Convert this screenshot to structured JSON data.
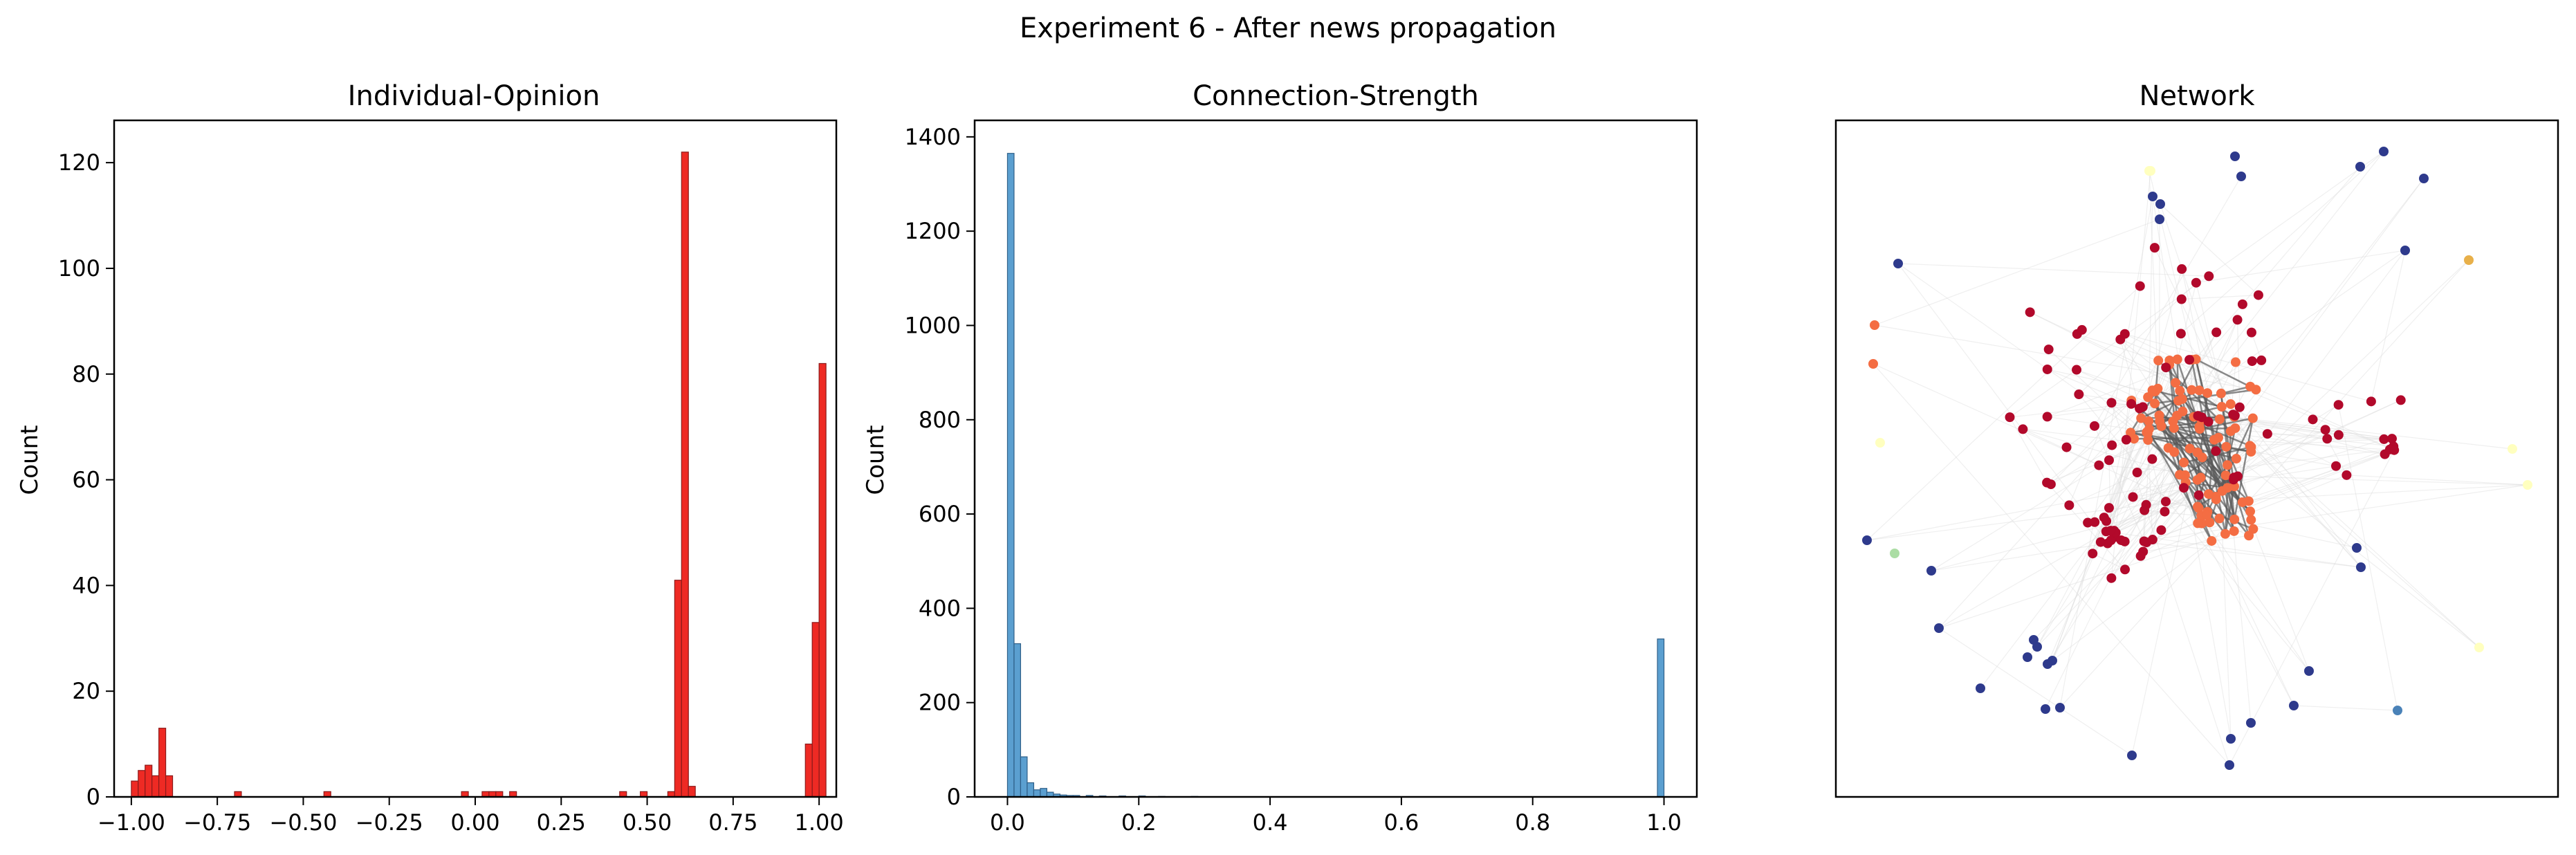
{
  "figure": {
    "title": "Experiment 6 - After news propagation"
  },
  "chart_data": [
    {
      "type": "bar",
      "title": "Individual-Opinion",
      "xlabel": "",
      "ylabel": "Count",
      "xlim": [
        -1.05,
        1.05
      ],
      "ylim": [
        0,
        128
      ],
      "xticks": [
        "−1.00",
        "−0.75",
        "−0.50",
        "−0.25",
        "0.00",
        "0.25",
        "0.50",
        "0.75",
        "1.00"
      ],
      "xtick_values": [
        -1.0,
        -0.75,
        -0.5,
        -0.25,
        0.0,
        0.25,
        0.5,
        0.75,
        1.0
      ],
      "yticks": [
        "0",
        "20",
        "40",
        "60",
        "80",
        "100",
        "120"
      ],
      "ytick_values": [
        0,
        20,
        40,
        60,
        80,
        100,
        120
      ],
      "bin_width": 0.02,
      "bins": [
        {
          "x": -1.0,
          "count": 3
        },
        {
          "x": -0.98,
          "count": 5
        },
        {
          "x": -0.96,
          "count": 6
        },
        {
          "x": -0.94,
          "count": 4
        },
        {
          "x": -0.92,
          "count": 13
        },
        {
          "x": -0.9,
          "count": 4
        },
        {
          "x": -0.7,
          "count": 1
        },
        {
          "x": -0.44,
          "count": 1
        },
        {
          "x": -0.04,
          "count": 1
        },
        {
          "x": 0.02,
          "count": 1
        },
        {
          "x": 0.04,
          "count": 1
        },
        {
          "x": 0.06,
          "count": 1
        },
        {
          "x": 0.1,
          "count": 1
        },
        {
          "x": 0.42,
          "count": 1
        },
        {
          "x": 0.48,
          "count": 1
        },
        {
          "x": 0.56,
          "count": 1
        },
        {
          "x": 0.58,
          "count": 41
        },
        {
          "x": 0.6,
          "count": 122
        },
        {
          "x": 0.62,
          "count": 2
        },
        {
          "x": 0.96,
          "count": 10
        },
        {
          "x": 0.98,
          "count": 33
        },
        {
          "x": 1.0,
          "count": 82
        }
      ],
      "color": "#ee2a24",
      "edge_color": "#8b1a1a"
    },
    {
      "type": "bar",
      "title": "Connection-Strength",
      "xlabel": "",
      "ylabel": "Count",
      "xlim": [
        -0.05,
        1.05
      ],
      "ylim": [
        0,
        1435
      ],
      "xticks": [
        "0.0",
        "0.2",
        "0.4",
        "0.6",
        "0.8",
        "1.0"
      ],
      "xtick_values": [
        0.0,
        0.2,
        0.4,
        0.6,
        0.8,
        1.0
      ],
      "yticks": [
        "0",
        "200",
        "400",
        "600",
        "800",
        "1000",
        "1200",
        "1400"
      ],
      "ytick_values": [
        0,
        200,
        400,
        600,
        800,
        1000,
        1200,
        1400
      ],
      "bin_width": 0.01,
      "bins": [
        {
          "x": 0.0,
          "count": 1365
        },
        {
          "x": 0.01,
          "count": 325
        },
        {
          "x": 0.02,
          "count": 85
        },
        {
          "x": 0.03,
          "count": 30
        },
        {
          "x": 0.04,
          "count": 15
        },
        {
          "x": 0.05,
          "count": 18
        },
        {
          "x": 0.06,
          "count": 10
        },
        {
          "x": 0.07,
          "count": 6
        },
        {
          "x": 0.08,
          "count": 4
        },
        {
          "x": 0.09,
          "count": 3
        },
        {
          "x": 0.1,
          "count": 3
        },
        {
          "x": 0.12,
          "count": 3
        },
        {
          "x": 0.14,
          "count": 2
        },
        {
          "x": 0.17,
          "count": 2
        },
        {
          "x": 0.2,
          "count": 2
        },
        {
          "x": 0.23,
          "count": 1
        },
        {
          "x": 0.28,
          "count": 1
        },
        {
          "x": 0.99,
          "count": 335
        }
      ],
      "color": "#5b9fd0",
      "edge_color": "#2f5f88"
    },
    {
      "type": "scatter",
      "title": "Network",
      "xlabel": "",
      "ylabel": "",
      "axes_visible": false,
      "node_colors": {
        "negative_opinion": "#2e3a8c",
        "moderate_positive": "#f46d43",
        "strong_positive": "#b2092b",
        "neutral": "#ffffbf",
        "neutral_light": "#abdda4",
        "mid_blue": "#4a82b8",
        "amber": "#e8b04a"
      },
      "edge_color_strong": "#5a5a5a",
      "edge_color_weak": "#dcdcdc"
    }
  ]
}
